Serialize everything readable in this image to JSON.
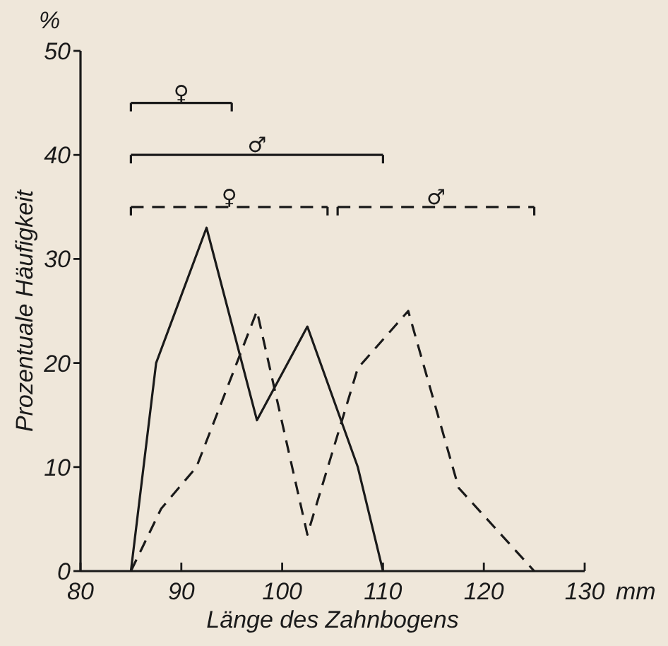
{
  "chart_data": {
    "type": "line",
    "xlabel": "Länge des Zahnbogens",
    "ylabel": "Prozentuale Häufigkeit",
    "annotations": [
      "%",
      "mm"
    ],
    "xlim": [
      80,
      130
    ],
    "xticks": [
      80,
      90,
      100,
      110,
      120,
      130
    ],
    "ylim": [
      0,
      50
    ],
    "yticks": [
      0,
      10,
      20,
      30,
      40,
      50
    ],
    "grid": false,
    "marker": "none",
    "series": [
      {
        "color": "#1a1a1a",
        "line_style": "solid",
        "x": [
          85,
          87.5,
          92.5,
          97.5,
          102.5,
          107.5,
          110
        ],
        "values": [
          0,
          20,
          33,
          14.5,
          23.5,
          10,
          0
        ]
      },
      {
        "color": "#1a1a1a",
        "line_style": "dashed",
        "x": [
          85,
          88,
          91.5,
          97.5,
          102.5,
          107.5,
          112.5,
          117.5,
          125
        ],
        "values": [
          0,
          6,
          10,
          25,
          3.5,
          19.5,
          25,
          8,
          0
        ]
      },
      {
        "name": "♀",
        "color": "#1a1a1a",
        "line_style": "solid",
        "x": [
          85,
          95
        ],
        "values": [
          45,
          45
        ]
      },
      {
        "name": "♂",
        "color": "#1a1a1a",
        "line_style": "solid",
        "x": [
          85,
          110
        ],
        "values": [
          40,
          40
        ]
      },
      {
        "name": "♀",
        "color": "#1a1a1a",
        "line_style": "dashed",
        "x": [
          85,
          104.5
        ],
        "values": [
          35,
          35
        ]
      },
      {
        "name": "♂",
        "color": "#1a1a1a",
        "line_style": "dashed",
        "x": [
          105.5,
          125
        ],
        "values": [
          35,
          35
        ]
      }
    ]
  }
}
